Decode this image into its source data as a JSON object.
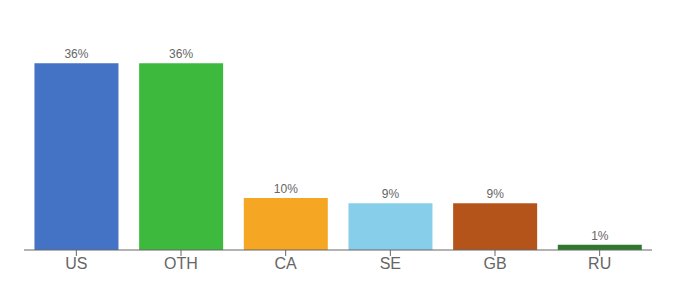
{
  "chart_data": {
    "type": "bar",
    "categories": [
      "US",
      "OTH",
      "CA",
      "SE",
      "GB",
      "RU"
    ],
    "values": [
      36,
      36,
      10,
      9,
      9,
      1
    ],
    "value_labels": [
      "36%",
      "36%",
      "10%",
      "9%",
      "9%",
      "1%"
    ],
    "colors": [
      "#4472c4",
      "#3dba3d",
      "#f5a623",
      "#87ceeb",
      "#b5541a",
      "#2d7a2d"
    ],
    "ylim": [
      0,
      42
    ],
    "data_labels": true,
    "tick_labels": "x",
    "grid": false
  }
}
